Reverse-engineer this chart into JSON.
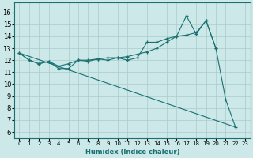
{
  "xlabel": "Humidex (Indice chaleur)",
  "bg_color": "#cce8e8",
  "line_color": "#1a7070",
  "grid_color": "#aacccc",
  "xlim": [
    -0.5,
    23.5
  ],
  "ylim": [
    5.5,
    16.8
  ],
  "yticks": [
    6,
    7,
    8,
    9,
    10,
    11,
    12,
    13,
    14,
    15,
    16
  ],
  "xticks": [
    0,
    1,
    2,
    3,
    4,
    5,
    6,
    7,
    8,
    9,
    10,
    11,
    12,
    13,
    14,
    15,
    16,
    17,
    18,
    19,
    20,
    21,
    22,
    23
  ],
  "line1_x": [
    0,
    1,
    2,
    3,
    4,
    5,
    6,
    7,
    8,
    9,
    10,
    11,
    12,
    13,
    14,
    15,
    16,
    17,
    18,
    19,
    20,
    21,
    22
  ],
  "line1_y": [
    12.6,
    12.0,
    11.7,
    11.9,
    11.3,
    11.3,
    12.0,
    11.9,
    12.1,
    12.0,
    12.2,
    12.0,
    12.2,
    13.5,
    13.5,
    13.8,
    14.0,
    15.7,
    14.2,
    15.3,
    13.0,
    8.7,
    6.4
  ],
  "line2_x": [
    0,
    1,
    2,
    3,
    4,
    5,
    6,
    7,
    8,
    9,
    10,
    11,
    12,
    13,
    14,
    15,
    16,
    17,
    18,
    19,
    20
  ],
  "line2_y": [
    12.6,
    12.0,
    11.7,
    11.9,
    11.5,
    11.7,
    12.0,
    12.0,
    12.1,
    12.2,
    12.2,
    12.3,
    12.5,
    12.7,
    13.0,
    13.5,
    14.0,
    14.1,
    14.3,
    15.3,
    13.0
  ],
  "line3_x": [
    0,
    22
  ],
  "line3_y": [
    12.6,
    6.4
  ]
}
